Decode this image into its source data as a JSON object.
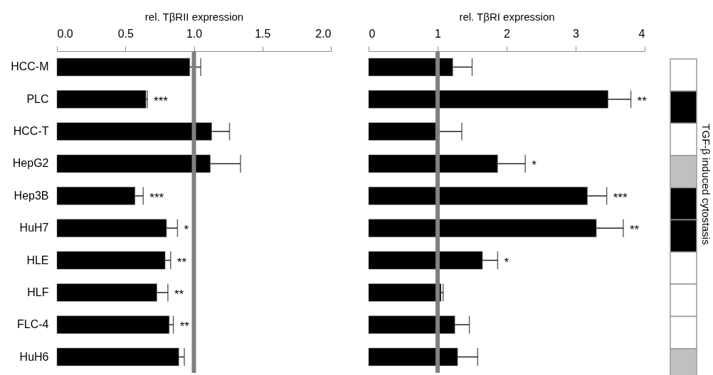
{
  "chart_data": [
    {
      "type": "bar",
      "orientation": "horizontal",
      "xlabel": "rel. TβRII expression",
      "categories": [
        "HCC-M",
        "PLC",
        "HCC-T",
        "HepG2",
        "Hep3B",
        "HuH7",
        "HLE",
        "HLF",
        "FLC-4",
        "HuH6"
      ],
      "values": [
        0.97,
        0.65,
        1.13,
        1.12,
        0.57,
        0.8,
        0.79,
        0.73,
        0.82,
        0.89
      ],
      "errors": [
        0.08,
        0.01,
        0.13,
        0.22,
        0.06,
        0.08,
        0.04,
        0.08,
        0.03,
        0.04
      ],
      "color": "#000000",
      "xlim": [
        0,
        2
      ],
      "xticks": [
        {
          "value": 0,
          "label": "0.0"
        },
        {
          "value": 0.5,
          "label": "0.5"
        },
        {
          "value": 1,
          "label": "1.0"
        },
        {
          "value": 1.5,
          "label": "1.5"
        },
        {
          "value": 2,
          "label": "2.0"
        }
      ],
      "ref_lines": [
        {
          "axis": "x",
          "value": 1,
          "color": "#808080"
        }
      ],
      "annotations": [
        {
          "text": "***",
          "x": 0.65,
          "y": "PLC"
        },
        {
          "text": "***",
          "x": 0.57,
          "y": "Hep3B"
        },
        {
          "text": "*",
          "x": 0.8,
          "y": "HuH7"
        },
        {
          "text": "**",
          "x": 0.79,
          "y": "HLE"
        },
        {
          "text": "**",
          "x": 0.73,
          "y": "HLF"
        },
        {
          "text": "**",
          "x": 0.82,
          "y": "FLC-4"
        }
      ],
      "grid": false
    },
    {
      "type": "bar",
      "orientation": "horizontal",
      "xlabel": "rel. TβRI expression",
      "categories": [
        "HCC-M",
        "PLC",
        "HCC-T",
        "HepG2",
        "Hep3B",
        "HuH7",
        "HLE",
        "HLF",
        "FLC-4",
        "HuH6"
      ],
      "values": [
        1.22,
        3.47,
        0.97,
        1.87,
        3.17,
        3.3,
        1.65,
        1.05,
        1.25,
        1.29
      ],
      "errors": [
        0.28,
        0.33,
        0.38,
        0.4,
        0.28,
        0.39,
        0.22,
        0.03,
        0.21,
        0.29
      ],
      "color": "#000000",
      "xlim": [
        0,
        4
      ],
      "xticks": [
        0,
        1,
        2,
        3,
        4
      ],
      "tick_labels": "x",
      "ref_lines": [
        {
          "axis": "x",
          "value": 1,
          "color": "#808080"
        }
      ],
      "annotations": [
        {
          "text": "**",
          "x": 3.47,
          "y": "PLC"
        },
        {
          "text": "*",
          "x": 1.87,
          "y": "HepG2"
        },
        {
          "text": "***",
          "x": 3.17,
          "y": "Hep3B"
        },
        {
          "text": "**",
          "x": 3.3,
          "y": "HuH7"
        },
        {
          "text": "*",
          "x": 1.65,
          "y": "HLE"
        }
      ],
      "grid": false
    },
    {
      "type": "other",
      "categories": [
        null,
        null,
        null,
        null,
        null,
        null,
        null,
        null,
        null,
        null
      ],
      "colors": [
        "#ffffff",
        "#000000",
        "#ffffff",
        "#c0c0c0",
        "#000000",
        "#000000",
        "#ffffff",
        "#ffffff",
        "#ffffff",
        "#c0c0c0"
      ],
      "ylabel": "TGF-β induced cytostasis"
    }
  ]
}
